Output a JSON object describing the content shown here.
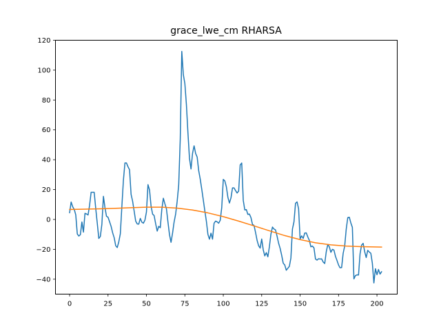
{
  "chart_data": {
    "type": "line",
    "title": "grace_lwe_cm RHARSA",
    "xlabel": "",
    "ylabel": "",
    "xlim": [
      -9.2,
      213.2
    ],
    "ylim": [
      -50,
      120
    ],
    "xticks": [
      0,
      25,
      50,
      75,
      100,
      125,
      150,
      175,
      200
    ],
    "yticks": [
      -40,
      -20,
      0,
      20,
      40,
      60,
      80,
      100,
      120
    ],
    "grid": false,
    "legend": "none",
    "series": [
      {
        "color": "#1f77b4",
        "points": [
          [
            0,
            4.5
          ],
          [
            1,
            11.7
          ],
          [
            2,
            8.5
          ],
          [
            3,
            6.8
          ],
          [
            4,
            3.1
          ],
          [
            5,
            -9.7
          ],
          [
            6,
            -11.1
          ],
          [
            7,
            -10.2
          ],
          [
            8,
            -1.7
          ],
          [
            9,
            -8.5
          ],
          [
            10,
            4.1
          ],
          [
            11,
            3.7
          ],
          [
            12,
            3.0
          ],
          [
            13,
            9.5
          ],
          [
            14,
            18.2
          ],
          [
            15,
            18.2
          ],
          [
            16,
            18.2
          ],
          [
            17,
            7.4
          ],
          [
            18,
            -2.5
          ],
          [
            19,
            -12.7
          ],
          [
            20,
            -11.4
          ],
          [
            21,
            -3.2
          ],
          [
            22,
            15.5
          ],
          [
            23,
            8.0
          ],
          [
            24,
            2.2
          ],
          [
            25,
            1.5
          ],
          [
            26,
            -1.5
          ],
          [
            27,
            -4.6
          ],
          [
            28,
            -8.9
          ],
          [
            29,
            -12.2
          ],
          [
            30,
            -17.6
          ],
          [
            31,
            -18.8
          ],
          [
            32,
            -15.0
          ],
          [
            33,
            -9.6
          ],
          [
            34,
            8.6
          ],
          [
            35,
            26.2
          ],
          [
            36,
            37.8
          ],
          [
            37,
            37.8
          ],
          [
            38,
            35.3
          ],
          [
            39,
            33.3
          ],
          [
            40,
            16.8
          ],
          [
            41,
            12.2
          ],
          [
            42,
            5.6
          ],
          [
            43,
            -1.1
          ],
          [
            44,
            -3.0
          ],
          [
            45,
            -3.1
          ],
          [
            46,
            0.7
          ],
          [
            47,
            -1.8
          ],
          [
            48,
            -2.5
          ],
          [
            49,
            -0.5
          ],
          [
            50,
            5.0
          ],
          [
            51,
            23.3
          ],
          [
            52,
            19.8
          ],
          [
            53,
            9.0
          ],
          [
            54,
            3.6
          ],
          [
            55,
            2.6
          ],
          [
            56,
            -2.9
          ],
          [
            57,
            -7.8
          ],
          [
            58,
            -4.6
          ],
          [
            59,
            -5.5
          ],
          [
            60,
            6.8
          ],
          [
            61,
            14.2
          ],
          [
            62,
            10.5
          ],
          [
            63,
            7.2
          ],
          [
            64,
            -1.7
          ],
          [
            65,
            -10.2
          ],
          [
            66,
            -15.3
          ],
          [
            67,
            -9.1
          ],
          [
            68,
            -1.7
          ],
          [
            69,
            3.6
          ],
          [
            70,
            12.2
          ],
          [
            71,
            23.2
          ],
          [
            72,
            54.0
          ],
          [
            73,
            112.5
          ],
          [
            74,
            97.0
          ],
          [
            75,
            91.0
          ],
          [
            76,
            77.0
          ],
          [
            77,
            58.0
          ],
          [
            78,
            41.0
          ],
          [
            79,
            33.8
          ],
          [
            80,
            44.3
          ],
          [
            81,
            49.3
          ],
          [
            82,
            44.2
          ],
          [
            83,
            41.8
          ],
          [
            84,
            32.7
          ],
          [
            85,
            27.0
          ],
          [
            86,
            20.2
          ],
          [
            87,
            13.0
          ],
          [
            88,
            5.7
          ],
          [
            89,
            -1.2
          ],
          [
            90,
            -10.0
          ],
          [
            91,
            -13.2
          ],
          [
            92,
            -9.2
          ],
          [
            93,
            -13.2
          ],
          [
            94,
            -2.5
          ],
          [
            95,
            -1.1
          ],
          [
            96,
            -1.6
          ],
          [
            97,
            -2.5
          ],
          [
            98,
            -0.6
          ],
          [
            99,
            8.0
          ],
          [
            100,
            26.8
          ],
          [
            101,
            25.8
          ],
          [
            102,
            21.9
          ],
          [
            103,
            14.8
          ],
          [
            104,
            11.0
          ],
          [
            105,
            14.4
          ],
          [
            106,
            21.1
          ],
          [
            107,
            21.1
          ],
          [
            108,
            19.3
          ],
          [
            109,
            17.7
          ],
          [
            110,
            19.0
          ],
          [
            111,
            36.5
          ],
          [
            112,
            37.8
          ],
          [
            113,
            12.8
          ],
          [
            114,
            6.4
          ],
          [
            115,
            6.6
          ],
          [
            116,
            3.4
          ],
          [
            117,
            3.6
          ],
          [
            118,
            1.3
          ],
          [
            119,
            -3.3
          ],
          [
            120,
            -4.0
          ],
          [
            121,
            -8.7
          ],
          [
            122,
            -14.0
          ],
          [
            123,
            -17.6
          ],
          [
            124,
            -19.2
          ],
          [
            125,
            -13.1
          ],
          [
            126,
            -20.3
          ],
          [
            127,
            -24.4
          ],
          [
            128,
            -22.2
          ],
          [
            129,
            -25.0
          ],
          [
            130,
            -18.3
          ],
          [
            131,
            -9.8
          ],
          [
            132,
            -5.1
          ],
          [
            133,
            -6.4
          ],
          [
            134,
            -7.0
          ],
          [
            135,
            -11.2
          ],
          [
            136,
            -15.9
          ],
          [
            137,
            -19.4
          ],
          [
            138,
            -24.0
          ],
          [
            139,
            -29.3
          ],
          [
            140,
            -30.5
          ],
          [
            141,
            -34.0
          ],
          [
            142,
            -32.7
          ],
          [
            143,
            -31.4
          ],
          [
            144,
            -25.8
          ],
          [
            145,
            -6.4
          ],
          [
            146,
            -1.6
          ],
          [
            147,
            10.8
          ],
          [
            148,
            11.8
          ],
          [
            149,
            7.2
          ],
          [
            150,
            -13.0
          ],
          [
            151,
            -11.0
          ],
          [
            152,
            -12.7
          ],
          [
            153,
            -9.1
          ],
          [
            154,
            -9.0
          ],
          [
            155,
            -11.7
          ],
          [
            156,
            -14.0
          ],
          [
            157,
            -18.3
          ],
          [
            158,
            -17.8
          ],
          [
            159,
            -19.0
          ],
          [
            160,
            -26.5
          ],
          [
            161,
            -27.2
          ],
          [
            162,
            -26.3
          ],
          [
            163,
            -26.5
          ],
          [
            164,
            -26.4
          ],
          [
            165,
            -28.5
          ],
          [
            166,
            -29.5
          ],
          [
            167,
            -21.7
          ],
          [
            168,
            -16.8
          ],
          [
            169,
            -18.3
          ],
          [
            170,
            -22.0
          ],
          [
            171,
            -20.0
          ],
          [
            172,
            -20.5
          ],
          [
            173,
            -24.7
          ],
          [
            174,
            -27.5
          ],
          [
            175,
            -30.5
          ],
          [
            176,
            -32.4
          ],
          [
            177,
            -32.2
          ],
          [
            178,
            -22.7
          ],
          [
            179,
            -17.8
          ],
          [
            180,
            -6.5
          ],
          [
            181,
            1.2
          ],
          [
            182,
            1.5
          ],
          [
            183,
            -2.3
          ],
          [
            184,
            -5.3
          ],
          [
            185,
            -39.8
          ],
          [
            186,
            -37.6
          ],
          [
            187,
            -37.1
          ],
          [
            188,
            -37.2
          ],
          [
            189,
            -23.0
          ],
          [
            190,
            -17.2
          ],
          [
            191,
            -16.0
          ],
          [
            192,
            -21.5
          ],
          [
            193,
            -25.5
          ],
          [
            194,
            -20.7
          ],
          [
            195,
            -21.8
          ],
          [
            196,
            -22.6
          ],
          [
            197,
            -29.3
          ],
          [
            198,
            -42.5
          ],
          [
            199,
            -33.0
          ],
          [
            200,
            -37.0
          ],
          [
            201,
            -33.5
          ],
          [
            202,
            -36.6
          ],
          [
            203,
            -35.0
          ]
        ]
      },
      {
        "color": "#ff7f0e",
        "points": [
          [
            0,
            6.7
          ],
          [
            10,
            6.9
          ],
          [
            20,
            7.1
          ],
          [
            30,
            7.5
          ],
          [
            40,
            7.9
          ],
          [
            50,
            8.2
          ],
          [
            60,
            8.2
          ],
          [
            70,
            7.6
          ],
          [
            80,
            6.3
          ],
          [
            90,
            4.4
          ],
          [
            100,
            1.9
          ],
          [
            110,
            -1.1
          ],
          [
            120,
            -4.3
          ],
          [
            130,
            -7.6
          ],
          [
            140,
            -10.8
          ],
          [
            150,
            -13.5
          ],
          [
            160,
            -15.6
          ],
          [
            170,
            -17.0
          ],
          [
            180,
            -17.8
          ],
          [
            190,
            -18.2
          ],
          [
            203,
            -18.5
          ]
        ]
      }
    ]
  }
}
